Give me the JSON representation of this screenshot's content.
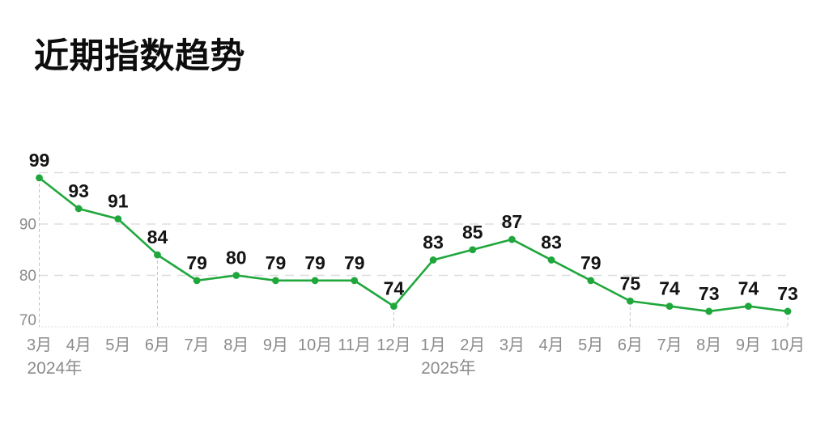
{
  "title": "近期指数趋势",
  "colors": {
    "background": "#ffffff",
    "line": "#1fa73c",
    "point": "#1fa73c",
    "data_label": "#141414",
    "axis_text": "#8b8b8b",
    "gridline": "#dddddd",
    "axis_line": "#d6d6d6",
    "dropline": "#c2c2c2",
    "title_color": "#0d0d0d"
  },
  "chart_data": {
    "type": "line",
    "title": "近期指数趋势",
    "x": [
      "3月",
      "4月",
      "5月",
      "6月",
      "7月",
      "8月",
      "9月",
      "10月",
      "11月",
      "12月",
      "1月",
      "2月",
      "3月",
      "4月",
      "5月",
      "6月",
      "7月",
      "8月",
      "9月",
      "10月"
    ],
    "values": [
      99,
      93,
      91,
      84,
      79,
      80,
      79,
      79,
      79,
      74,
      83,
      85,
      87,
      83,
      79,
      75,
      74,
      73,
      74,
      73
    ],
    "data_labels_visible": true,
    "year_markers": [
      {
        "label": "2024年",
        "at_index": 0
      },
      {
        "label": "2025年",
        "at_index": 10
      }
    ],
    "dropline_indices": [
      0,
      3,
      9,
      15,
      19
    ],
    "y_tick_labels": [
      90,
      80,
      70
    ],
    "grid_values": [
      100,
      90,
      80
    ],
    "ylim": [
      70,
      100
    ],
    "xlabel": "",
    "ylabel": "",
    "grid": "dashed-horizontal",
    "legend": "none"
  }
}
